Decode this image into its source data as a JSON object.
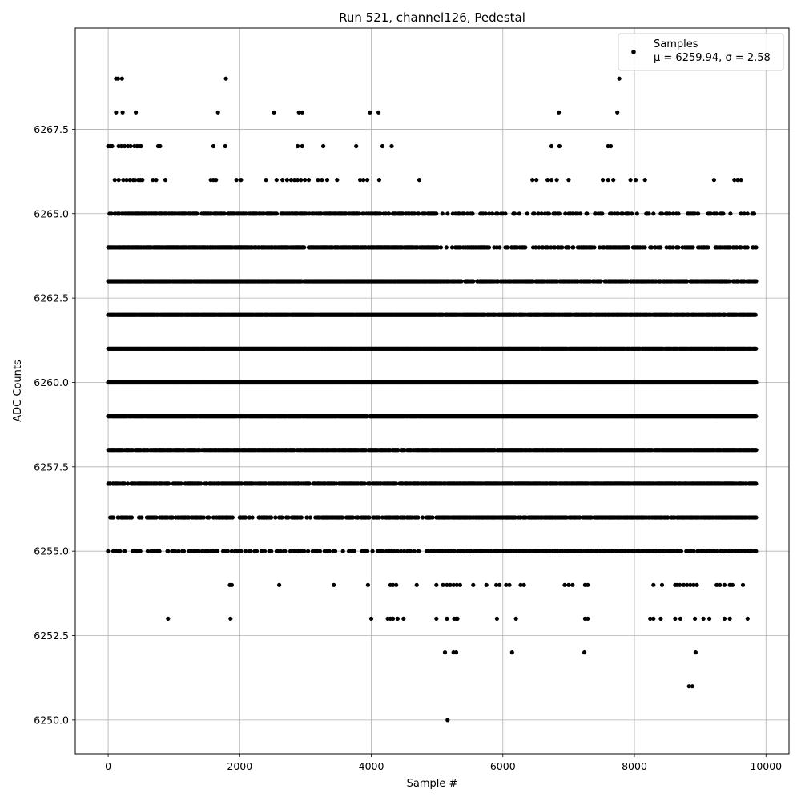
{
  "chart_data": {
    "type": "scatter",
    "title": "Run 521, channel126, Pedestal",
    "xlabel": "Sample #",
    "ylabel": "ADC Counts",
    "xlim": [
      -500,
      10350
    ],
    "ylim": [
      6249.0,
      6270.5
    ],
    "xticks": [
      0,
      2000,
      4000,
      6000,
      8000,
      10000
    ],
    "xtick_labels": [
      "0",
      "2000",
      "4000",
      "6000",
      "8000",
      "10000"
    ],
    "yticks": [
      6250.0,
      6252.5,
      6255.0,
      6257.5,
      6260.0,
      6262.5,
      6265.0,
      6267.5
    ],
    "ytick_labels": [
      "6250.0",
      "6252.5",
      "6255.0",
      "6257.5",
      "6260.0",
      "6262.5",
      "6265.0",
      "6267.5"
    ],
    "grid": true,
    "legend_position": "top-right",
    "marker_color": "#000000",
    "series": [
      {
        "name": "Samples",
        "label_line1": "Samples",
        "label_line2": "μ = 6259.94, σ = 2.58",
        "x_range": [
          0,
          9850
        ],
        "levels": [
          {
            "y": 6269,
            "x": [
              120,
              150,
              210,
              1790,
              7770
            ]
          },
          {
            "y": 6268,
            "x": [
              120,
              220,
              420,
              1670,
              2520,
              2900,
              2950,
              3980,
              4110,
              6850,
              7740
            ]
          },
          {
            "y": 6267,
            "x": [
              0,
              30,
              60,
              160,
              200,
              250,
              300,
              340,
              400,
              440,
              470,
              500,
              760,
              790,
              1600,
              1780,
              2880,
              2950,
              3270,
              3770,
              4170,
              4310,
              6740,
              6860,
              7600,
              7640
            ]
          },
          {
            "y": 6266,
            "x": [
              100,
              160,
              230,
              280,
              330,
              380,
              410,
              460,
              490,
              520,
              680,
              730,
              870,
              1560,
              1600,
              1640,
              1950,
              2020,
              2400,
              2560,
              2650,
              2720,
              2780,
              2830,
              2880,
              2930,
              2990,
              3050,
              3190,
              3250,
              3330,
              3480,
              3830,
              3880,
              3940,
              4120,
              4730,
              6450,
              6510,
              6680,
              6740,
              6820,
              7000,
              7520,
              7600,
              7680,
              7940,
              8020,
              8160,
              9210,
              9520,
              9570,
              9620
            ]
          }
        ],
        "dense_levels": [
          {
            "y": 6265,
            "density": 0.62,
            "fade_after": 5000,
            "fade_density": 0.22
          },
          {
            "y": 6264,
            "density": 0.78,
            "fade_after": 5000,
            "fade_density": 0.35
          },
          {
            "y": 6263,
            "density": 0.92,
            "fade_after": 5000,
            "fade_density": 0.62
          },
          {
            "y": 6262,
            "density": 0.95,
            "fade_after": 5000,
            "fade_density": 0.8
          },
          {
            "y": 6261,
            "density": 1.0,
            "fade_after": 5000,
            "fade_density": 0.98
          },
          {
            "y": 6260,
            "density": 1.0,
            "fade_after": 5000,
            "fade_density": 1.0
          },
          {
            "y": 6259,
            "density": 0.95,
            "fade_after": 5000,
            "fade_density": 1.0
          },
          {
            "y": 6258,
            "density": 0.8,
            "fade_after": 5000,
            "fade_density": 0.95
          },
          {
            "y": 6257,
            "density": 0.6,
            "fade_after": 5000,
            "fade_density": 0.82
          },
          {
            "y": 6256,
            "density": 0.42,
            "fade_after": 5000,
            "fade_density": 0.72
          },
          {
            "y": 6255,
            "density": 0.25,
            "fade_after": 5000,
            "fade_density": 0.55
          }
        ],
        "sparse_levels": [
          {
            "y": 6254,
            "x": [
              1850,
              1880,
              2600,
              3430,
              3950,
              4290,
              4330,
              4380,
              4690,
              4990,
              5090,
              5150,
              5200,
              5250,
              5300,
              5350,
              5550,
              5750,
              5900,
              5950,
              6050,
              6100,
              6270,
              6320,
              6940,
              7000,
              7060,
              7250,
              7290,
              8290,
              8420,
              8620,
              8650,
              8690,
              8750,
              8800,
              8850,
              8900,
              8950,
              9250,
              9300,
              9370,
              9450,
              9490,
              9650
            ]
          },
          {
            "y": 6253,
            "x": [
              910,
              1860,
              4000,
              4250,
              4290,
              4330,
              4400,
              4490,
              4990,
              5150,
              5260,
              5290,
              5310,
              5910,
              6200,
              7250,
              7290,
              8240,
              8290,
              8400,
              8620,
              8700,
              8920,
              9050,
              9140,
              9370,
              9450,
              9720
            ]
          },
          {
            "y": 6252,
            "x": [
              5120,
              5250,
              5290,
              6140,
              7240,
              8930
            ]
          },
          {
            "y": 6251,
            "x": [
              8830,
              8880
            ]
          },
          {
            "y": 6250,
            "x": [
              5160
            ]
          }
        ]
      }
    ]
  }
}
